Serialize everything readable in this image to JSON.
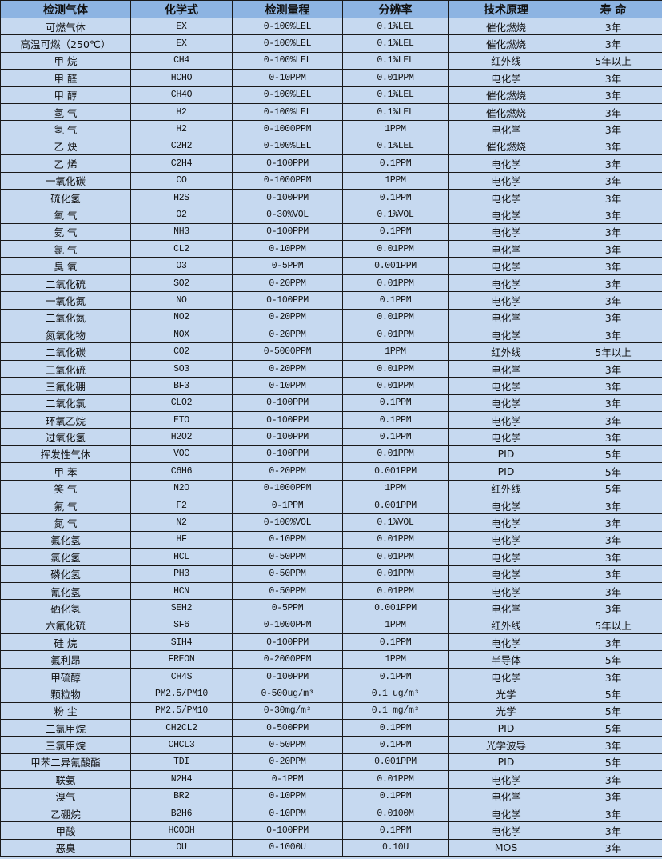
{
  "colors": {
    "header_bg": "#8db4e2",
    "row_bg": "#c6d9f0",
    "border": "#1a1a1a"
  },
  "headers": [
    "检测气体",
    "化学式",
    "检测量程",
    "分辨率",
    "技术原理",
    "寿 命"
  ],
  "rows": [
    [
      "可燃气体",
      "EX",
      "0-100%LEL",
      "0.1%LEL",
      "催化燃烧",
      "3年"
    ],
    [
      "高温可燃（250℃）",
      "EX",
      "0-100%LEL",
      "0.1%LEL",
      "催化燃烧",
      "3年"
    ],
    [
      "甲 烷",
      "CH4",
      "0-100%LEL",
      "0.1%LEL",
      "红外线",
      "5年以上"
    ],
    [
      "甲 醛",
      "HCHO",
      "0-10PPM",
      "0.01PPM",
      "电化学",
      "3年"
    ],
    [
      "甲 醇",
      "CH4O",
      "0-100%LEL",
      "0.1%LEL",
      "催化燃烧",
      "3年"
    ],
    [
      "氢 气",
      "H2",
      "0-100%LEL",
      "0.1%LEL",
      "催化燃烧",
      "3年"
    ],
    [
      "氢 气",
      "H2",
      "0-1000PPM",
      "1PPM",
      "电化学",
      "3年"
    ],
    [
      "乙 炔",
      "C2H2",
      "0-100%LEL",
      "0.1%LEL",
      "催化燃烧",
      "3年"
    ],
    [
      "乙 烯",
      "C2H4",
      "0-100PPM",
      "0.1PPM",
      "电化学",
      "3年"
    ],
    [
      "一氧化碳",
      "CO",
      "0-1000PPM",
      "1PPM",
      "电化学",
      "3年"
    ],
    [
      "硫化氢",
      "H2S",
      "0-100PPM",
      "0.1PPM",
      "电化学",
      "3年"
    ],
    [
      "氧 气",
      "O2",
      "0-30%VOL",
      "0.1%VOL",
      "电化学",
      "3年"
    ],
    [
      "氨 气",
      "NH3",
      "0-100PPM",
      "0.1PPM",
      "电化学",
      "3年"
    ],
    [
      "氯 气",
      "CL2",
      "0-10PPM",
      "0.01PPM",
      "电化学",
      "3年"
    ],
    [
      "臭 氧",
      "O3",
      "0-5PPM",
      "0.001PPM",
      "电化学",
      "3年"
    ],
    [
      "二氧化硫",
      "SO2",
      "0-20PPM",
      "0.01PPM",
      "电化学",
      "3年"
    ],
    [
      "一氧化氮",
      "NO",
      "0-100PPM",
      "0.1PPM",
      "电化学",
      "3年"
    ],
    [
      "二氧化氮",
      "NO2",
      "0-20PPM",
      "0.01PPM",
      "电化学",
      "3年"
    ],
    [
      "氮氧化物",
      "NOX",
      "0-20PPM",
      "0.01PPM",
      "电化学",
      "3年"
    ],
    [
      "二氧化碳",
      "CO2",
      "0-5000PPM",
      "1PPM",
      "红外线",
      "5年以上"
    ],
    [
      "三氧化硫",
      "SO3",
      "0-20PPM",
      "0.01PPM",
      "电化学",
      "3年"
    ],
    [
      "三氟化硼",
      "BF3",
      "0-10PPM",
      "0.01PPM",
      "电化学",
      "3年"
    ],
    [
      "二氧化氯",
      "CLO2",
      "0-100PPM",
      "0.1PPM",
      "电化学",
      "3年"
    ],
    [
      "环氧乙烷",
      "ETO",
      "0-100PPM",
      "0.1PPM",
      "电化学",
      "3年"
    ],
    [
      "过氧化氢",
      "H2O2",
      "0-100PPM",
      "0.1PPM",
      "电化学",
      "3年"
    ],
    [
      "挥发性气体",
      "VOC",
      "0-100PPM",
      "0.01PPM",
      "PID",
      "5年"
    ],
    [
      "甲 苯",
      "C6H6",
      "0-20PPM",
      "0.001PPM",
      "PID",
      "5年"
    ],
    [
      "笑 气",
      "N2O",
      "0-1000PPM",
      "1PPM",
      "红外线",
      "5年"
    ],
    [
      "氟 气",
      "F2",
      "0-1PPM",
      "0.001PPM",
      "电化学",
      "3年"
    ],
    [
      "氮 气",
      "N2",
      "0-100%VOL",
      "0.1%VOL",
      "电化学",
      "3年"
    ],
    [
      "氟化氢",
      "HF",
      "0-10PPM",
      "0.01PPM",
      "电化学",
      "3年"
    ],
    [
      "氯化氢",
      "HCL",
      "0-50PPM",
      "0.01PPM",
      "电化学",
      "3年"
    ],
    [
      "磷化氢",
      "PH3",
      "0-50PPM",
      "0.01PPM",
      "电化学",
      "3年"
    ],
    [
      "氰化氢",
      "HCN",
      "0-50PPM",
      "0.01PPM",
      "电化学",
      "3年"
    ],
    [
      "硒化氢",
      "SEH2",
      "0-5PPM",
      "0.001PPM",
      "电化学",
      "3年"
    ],
    [
      "六氟化硫",
      "SF6",
      "0-1000PPM",
      "1PPM",
      "红外线",
      "5年以上"
    ],
    [
      "硅 烷",
      "SIH4",
      "0-100PPM",
      "0.1PPM",
      "电化学",
      "3年"
    ],
    [
      "氟利昂",
      "FREON",
      "0-2000PPM",
      "1PPM",
      "半导体",
      "5年"
    ],
    [
      "甲硫醇",
      "CH4S",
      "0-100PPM",
      "0.1PPM",
      "电化学",
      "3年"
    ],
    [
      "颗粒物",
      "PM2.5/PM10",
      "0-500ug/m³",
      "0.1 ug/m³",
      "光学",
      "5年"
    ],
    [
      "粉 尘",
      "PM2.5/PM10",
      "0-30mg/m³",
      "0.1 mg/m³",
      "光学",
      "5年"
    ],
    [
      "二氯甲烷",
      "CH2CL2",
      "0-500PPM",
      "0.1PPM",
      "PID",
      "5年"
    ],
    [
      "三氯甲烷",
      "CHCL3",
      "0-50PPM",
      "0.1PPM",
      "光学波导",
      "3年"
    ],
    [
      "甲苯二异氰酸酯",
      "TDI",
      "0-20PPM",
      "0.001PPM",
      "PID",
      "5年"
    ],
    [
      "联氨",
      "N2H4",
      "0-1PPM",
      "0.01PPM",
      "电化学",
      "3年"
    ],
    [
      "溴气",
      "BR2",
      "0-10PPM",
      "0.1PPM",
      "电化学",
      "3年"
    ],
    [
      "乙硼烷",
      "B2H6",
      "0-10PPM",
      "0.0100M",
      "电化学",
      "3年"
    ],
    [
      "甲酸",
      "HCOOH",
      "0-100PPM",
      "0.1PPM",
      "电化学",
      "3年"
    ],
    [
      "恶臭",
      "OU",
      "0-1000U",
      "0.10U",
      "MOS",
      "3年"
    ]
  ]
}
